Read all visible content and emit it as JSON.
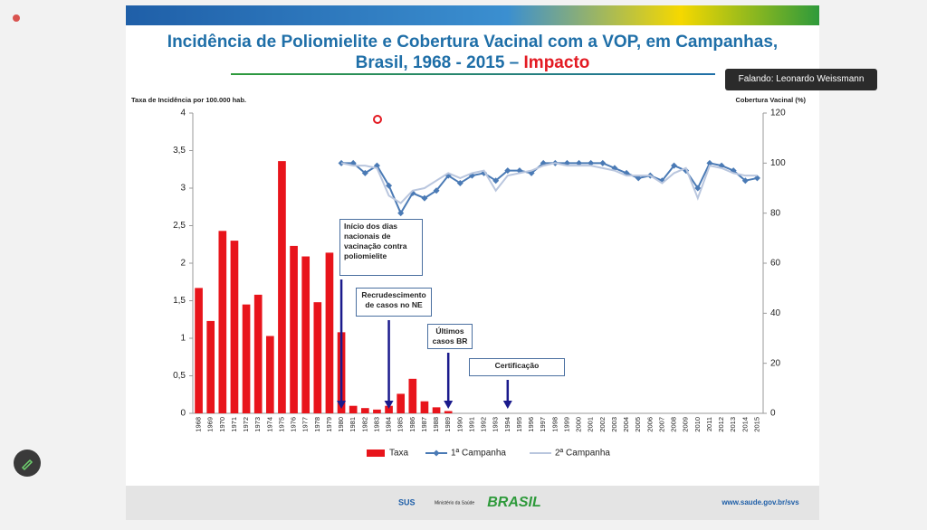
{
  "speaker": "Falando: Leonardo Weissmann",
  "footer": {
    "sus": "SUS",
    "ministry": "Ministério da Saúde",
    "logo": "BRASIL",
    "url": "www.saude.gov.br/svs"
  },
  "chart_data": {
    "type": "bar",
    "title_lines": [
      "Incidência de Poliomielite e Cobertura Vacinal com a VOP, em Campanhas,",
      "Brasil, 1968 - 2015 –"
    ],
    "title_highlight": "Impacto",
    "y_label": "Taxa de Incidência por 100.000 hab.",
    "y2_label": "Cobertura Vacinal (%)",
    "categories": [
      "1968",
      "1969",
      "1970",
      "1971",
      "1972",
      "1973",
      "1974",
      "1975",
      "1976",
      "1977",
      "1978",
      "1979",
      "1980",
      "1981",
      "1982",
      "1983",
      "1984",
      "1985",
      "1986",
      "1987",
      "1988",
      "1989",
      "1990",
      "1991",
      "1992",
      "1993",
      "1994",
      "1995",
      "1996",
      "1997",
      "1998",
      "1999",
      "2000",
      "2001",
      "2002",
      "2003",
      "2004",
      "2005",
      "2006",
      "2007",
      "2008",
      "2009",
      "2010",
      "2011",
      "2012",
      "2013",
      "2014",
      "2015"
    ],
    "series": [
      {
        "name": "Taxa",
        "type": "bar",
        "color": "#e8141b",
        "values": [
          1.67,
          1.23,
          2.43,
          2.3,
          1.45,
          1.58,
          1.03,
          3.36,
          2.23,
          2.09,
          1.48,
          2.14,
          1.08,
          0.1,
          0.07,
          0.05,
          0.1,
          0.26,
          0.46,
          0.16,
          0.08,
          0.03,
          0,
          0,
          0,
          0,
          0,
          0,
          0,
          0,
          0,
          0,
          0,
          0,
          0,
          0,
          0,
          0,
          0,
          0,
          0,
          0,
          0,
          0,
          0,
          0,
          0,
          0
        ]
      },
      {
        "name": "1ª Campanha",
        "type": "line",
        "axis": "y2",
        "color": "#4a7ab5",
        "values": [
          null,
          null,
          null,
          null,
          null,
          null,
          null,
          null,
          null,
          null,
          null,
          null,
          100,
          100,
          96,
          99,
          91,
          80,
          88,
          86,
          89,
          95,
          92,
          95,
          96,
          93,
          97,
          97,
          96,
          100,
          100,
          100,
          100,
          100,
          100,
          98,
          96,
          94,
          95,
          93,
          99,
          97,
          90,
          100,
          99,
          97,
          93,
          94
        ]
      },
      {
        "name": "2ª Campanha",
        "type": "line",
        "axis": "y2",
        "color": "#b9c6de",
        "values": [
          null,
          null,
          null,
          null,
          null,
          null,
          null,
          null,
          null,
          null,
          null,
          null,
          100,
          99,
          99,
          98,
          87,
          84,
          89,
          90,
          93,
          96,
          94,
          96,
          97,
          89,
          95,
          96,
          97,
          99,
          100,
          99,
          99,
          99,
          98,
          97,
          95,
          95,
          95,
          92,
          96,
          98,
          86,
          99,
          98,
          96,
          95,
          95
        ]
      }
    ],
    "ylim": [
      0,
      4
    ],
    "yticks": [
      0,
      {
        "value": 0.5,
        "label": "0,5"
      },
      1,
      {
        "value": 1.5,
        "label": "1,5"
      },
      2,
      {
        "value": 2.5,
        "label": "2,5"
      },
      3,
      {
        "value": 3.5,
        "label": "3,5"
      },
      4
    ],
    "y2lim": [
      0,
      120
    ],
    "y2ticks": [
      0,
      20,
      40,
      60,
      80,
      100,
      120
    ],
    "annotations": [
      {
        "text": "Início dos dias nacionais de vacinação contra poliomielite",
        "x": "1980"
      },
      {
        "text": "Recrudescimento de casos no NE",
        "x": "1984"
      },
      {
        "text": "Últimos casos BR",
        "x": "1989"
      },
      {
        "text": "Certificação",
        "x": "1994"
      }
    ]
  }
}
